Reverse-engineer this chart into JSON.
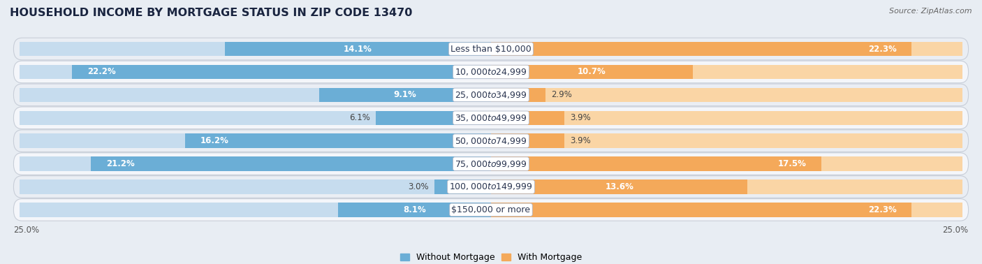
{
  "title": "HOUSEHOLD INCOME BY MORTGAGE STATUS IN ZIP CODE 13470",
  "source": "Source: ZipAtlas.com",
  "categories": [
    "Less than $10,000",
    "$10,000 to $24,999",
    "$25,000 to $34,999",
    "$35,000 to $49,999",
    "$50,000 to $74,999",
    "$75,000 to $99,999",
    "$100,000 to $149,999",
    "$150,000 or more"
  ],
  "without_mortgage": [
    14.1,
    22.2,
    9.1,
    6.1,
    16.2,
    21.2,
    3.0,
    8.1
  ],
  "with_mortgage": [
    22.3,
    10.7,
    2.9,
    3.9,
    3.9,
    17.5,
    13.6,
    22.3
  ],
  "color_without": "#6BAED6",
  "color_with": "#F4A95A",
  "color_without_light": "#C6DCEE",
  "color_with_light": "#FAD5A5",
  "bg_row_light": "#E8EDF3",
  "bg_row_dark": "#D8E0EA",
  "bg_figure": "#E8EDF3",
  "max_val": 25.0,
  "title_fontsize": 11.5,
  "label_fontsize": 8.5,
  "cat_fontsize": 9.0,
  "tick_fontsize": 8.5,
  "legend_fontsize": 9,
  "source_fontsize": 8
}
